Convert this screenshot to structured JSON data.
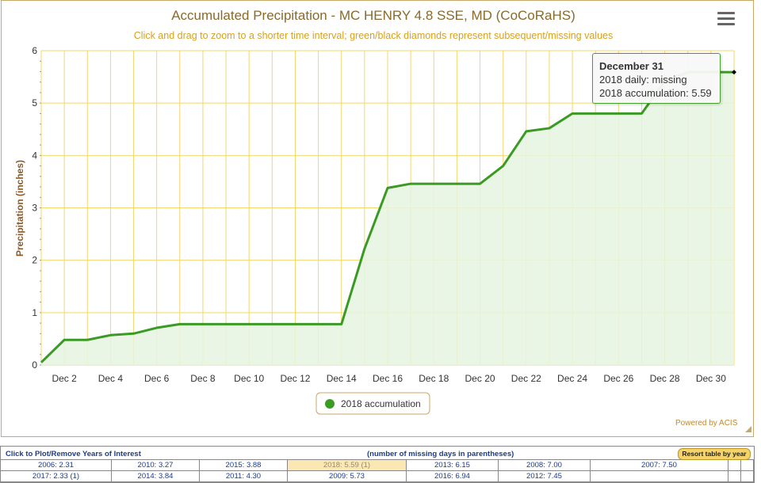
{
  "chart_data": {
    "type": "area",
    "title": "Accumulated Precipitation - MC HENRY 4.8 SSE, MD (CoCoRaHS)",
    "subtitle": "Click and drag to zoom to a shorter time interval; green/black diamonds represent subsequent/missing values",
    "ylabel": "Precipitation (inches)",
    "xlabel": "",
    "ylim": [
      0,
      6
    ],
    "yticks": [
      "0",
      "1",
      "2",
      "3",
      "4",
      "5",
      "6"
    ],
    "xlim": [
      1,
      31
    ],
    "xtick_days": [
      2,
      4,
      6,
      8,
      10,
      12,
      14,
      16,
      18,
      20,
      22,
      24,
      26,
      28,
      30
    ],
    "xtick_labels": [
      "Dec 2",
      "Dec 4",
      "Dec 6",
      "Dec 8",
      "Dec 10",
      "Dec 12",
      "Dec 14",
      "Dec 16",
      "Dec 18",
      "Dec 20",
      "Dec 22",
      "Dec 24",
      "Dec 26",
      "Dec 28",
      "Dec 30"
    ],
    "grid": true,
    "legend_position": "bottom-center",
    "series": [
      {
        "name": "2018 accumulation",
        "color": "#3a9a24",
        "x": [
          1,
          2,
          3,
          4,
          5,
          6,
          7,
          8,
          9,
          10,
          11,
          12,
          13,
          14,
          15,
          16,
          17,
          18,
          19,
          20,
          21,
          22,
          23,
          24,
          25,
          26,
          27,
          28,
          29,
          30,
          31
        ],
        "values": [
          0.05,
          0.48,
          0.48,
          0.57,
          0.6,
          0.71,
          0.78,
          0.78,
          0.78,
          0.78,
          0.78,
          0.78,
          0.78,
          0.78,
          2.22,
          3.38,
          3.46,
          3.46,
          3.46,
          3.46,
          3.8,
          4.46,
          4.52,
          4.8,
          4.8,
          4.8,
          4.8,
          5.42,
          5.59,
          5.59,
          5.59
        ]
      }
    ]
  },
  "tooltip": {
    "title": "December 31",
    "daily": "2018 daily: missing",
    "accum": "2018 accumulation: 5.59"
  },
  "colors": {
    "grid": "#f2d76e",
    "axis_text": "#8a6a2a",
    "title": "#8a6a2a",
    "subtitle": "#d8a020",
    "line": "#3a9a24",
    "fill": "#e6f4e0",
    "frame": "#c8a86a"
  },
  "powered_by": "Powered by ACIS",
  "menu_icon": "hamburger-menu-icon",
  "table": {
    "head_left": "Click to Plot/Remove Years of Interest",
    "head_mid": "(number of missing days in parentheses)",
    "resort_label": "Resort table by year",
    "row1": [
      "2006: 2.31",
      "2010: 3.27",
      "2015: 3.88",
      "2018: 5.59 (1)",
      "2013: 6.15",
      "2008: 7.00",
      "2007: 7.50",
      "",
      ""
    ],
    "row2": [
      "2017: 2.33 (1)",
      "2014: 3.84",
      "2011: 4.30",
      "2009: 5.73",
      "2016: 6.94",
      "2012: 7.45",
      "",
      "",
      ""
    ],
    "selected": "2018: 5.59 (1)"
  }
}
